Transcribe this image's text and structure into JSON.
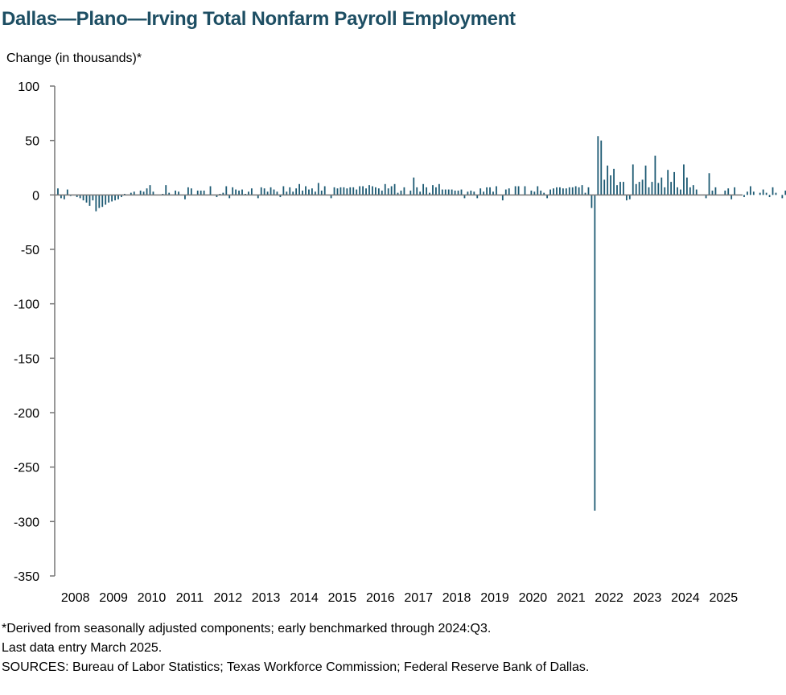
{
  "chart_data": {
    "type": "bar",
    "title": "Dallas—Plano—Irving Total Nonfarm Payroll Employment",
    "ylabel": "Change (in thousands)*",
    "xlabel": "",
    "ylim": [
      -350,
      100
    ],
    "yticks": [
      100,
      50,
      0,
      -50,
      -100,
      -150,
      -200,
      -250,
      -300,
      -350
    ],
    "year_labels": [
      "2008",
      "2009",
      "2010",
      "2011",
      "2012",
      "2013",
      "2014",
      "2015",
      "2016",
      "2017",
      "2018",
      "2019",
      "2020",
      "2021",
      "2022",
      "2023",
      "2024",
      "2025"
    ],
    "start": "2008-01",
    "end": "2025-03",
    "bar_color": "#1d5a73",
    "grid": false,
    "legend": "none",
    "values": [
      6,
      -3,
      -4,
      5,
      -1,
      0,
      -2,
      -3,
      -5,
      -7,
      -10,
      -5,
      -15,
      -12,
      -11,
      -9,
      -7,
      -6,
      -5,
      -4,
      -2,
      1,
      0,
      2,
      3,
      0,
      4,
      3,
      6,
      9,
      3,
      0,
      0,
      1,
      9,
      2,
      0,
      4,
      3,
      0,
      -4,
      7,
      6,
      0,
      4,
      4,
      4,
      0,
      8,
      0,
      -2,
      1,
      2,
      8,
      -3,
      7,
      5,
      4,
      5,
      1,
      3,
      6,
      0,
      -3,
      7,
      6,
      3,
      7,
      5,
      3,
      -2,
      8,
      3,
      7,
      3,
      6,
      10,
      4,
      8,
      5,
      6,
      3,
      11,
      4,
      8,
      0,
      -3,
      7,
      6,
      7,
      7,
      6,
      7,
      7,
      5,
      8,
      8,
      6,
      9,
      8,
      7,
      6,
      4,
      10,
      6,
      8,
      10,
      2,
      4,
      7,
      0,
      4,
      16,
      7,
      3,
      10,
      7,
      2,
      9,
      7,
      10,
      5,
      5,
      5,
      5,
      4,
      4,
      5,
      -3,
      3,
      4,
      3,
      -3,
      6,
      3,
      7,
      7,
      3,
      8,
      0,
      -5,
      5,
      6,
      0,
      8,
      8,
      0,
      8,
      0,
      4,
      3,
      8,
      4,
      2,
      -3,
      5,
      6,
      7,
      7,
      6,
      6,
      7,
      7,
      8,
      7,
      9,
      2,
      7,
      -12,
      -290,
      54,
      50,
      14,
      27,
      18,
      24,
      9,
      12,
      12,
      -5,
      -4,
      28,
      10,
      12,
      14,
      27,
      7,
      12,
      36,
      11,
      16,
      7,
      23,
      12,
      21,
      7,
      5,
      28,
      16,
      7,
      9,
      5,
      0,
      0,
      -3,
      20,
      4,
      7,
      0,
      0,
      4,
      6,
      -4,
      7,
      0,
      0,
      -2,
      3,
      8,
      3,
      0,
      2,
      5,
      2,
      -2,
      7,
      2,
      0,
      -3,
      4,
      10,
      -4,
      3,
      4,
      6
    ]
  },
  "notes": {
    "footnote": "*Derived from seasonally adjusted components; early benchmarked through 2024:Q3.",
    "last_entry": "Last data entry March 2025.",
    "sources": "SOURCES:  Bureau of Labor Statistics; Texas Workforce Commission;  Federal Reserve Bank of Dallas."
  }
}
